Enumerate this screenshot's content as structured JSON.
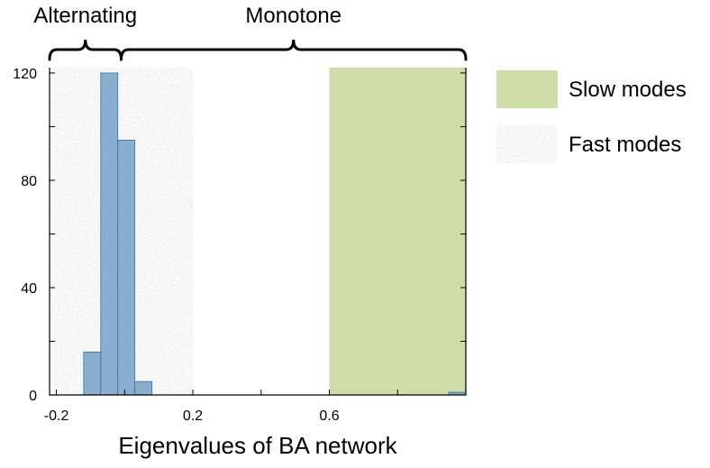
{
  "chart_data": {
    "type": "bar",
    "xlabel": "Eigenvalues of BA network",
    "ylabel": "",
    "xlim": [
      -0.22,
      1.0
    ],
    "ylim": [
      0,
      122
    ],
    "xticks": [
      {
        "value": -0.2,
        "label": "-0.2"
      },
      {
        "value": 0.2,
        "label": "0.2"
      },
      {
        "value": 0.6,
        "label": "0.6"
      }
    ],
    "yticks": [
      {
        "value": 0,
        "label": "0"
      },
      {
        "value": 40,
        "label": "40"
      },
      {
        "value": 80,
        "label": "80"
      },
      {
        "value": 120,
        "label": "120"
      }
    ],
    "bins": [
      {
        "x0": -0.12,
        "x1": -0.07,
        "count": 16
      },
      {
        "x0": -0.07,
        "x1": -0.02,
        "count": 120
      },
      {
        "x0": -0.02,
        "x1": 0.03,
        "count": 95
      },
      {
        "x0": 0.03,
        "x1": 0.08,
        "count": 5
      },
      {
        "x0": 0.95,
        "x1": 1.0,
        "count": 1
      }
    ],
    "bar_color": "#6f9ec7",
    "regions": [
      {
        "name": "Fast modes",
        "x0": -0.22,
        "x1": 0.2,
        "color": "#d2d4d4",
        "texture": "speckle"
      },
      {
        "name": "Slow modes",
        "x0": 0.6,
        "x1": 1.0,
        "color": "#cddca9",
        "texture": "solid"
      }
    ],
    "braces": [
      {
        "label": "Alternating",
        "x0": -0.22,
        "x1": -0.01
      },
      {
        "label": "Monotone",
        "x0": -0.01,
        "x1": 1.0
      }
    ],
    "legend": {
      "placement": "right",
      "entries": [
        {
          "label": "Slow modes",
          "color": "#cddca9",
          "texture": "solid"
        },
        {
          "label": "Fast modes",
          "color": "#d2d4d4",
          "texture": "speckle"
        }
      ]
    },
    "grid": false
  }
}
